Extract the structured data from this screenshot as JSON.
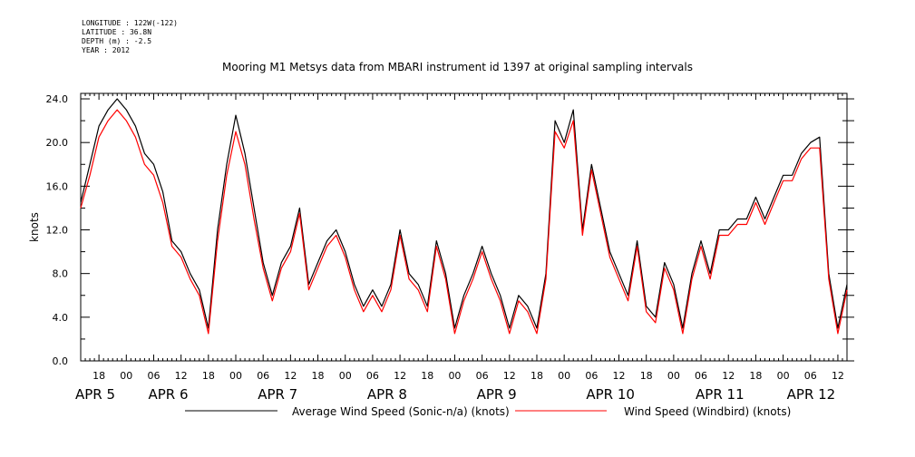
{
  "meta": {
    "longitude": "LONGITUDE : 122W(-122)",
    "latitude": "LATITUDE : 36.8N",
    "depth": "DEPTH (m) : -2.5",
    "year": "YEAR : 2012"
  },
  "chart_data": {
    "type": "line",
    "title": "Mooring M1 Metsys data from MBARI instrument id 1397 at original sampling intervals",
    "ylabel": "knots",
    "xlabel": "",
    "ylim": [
      0,
      24.5
    ],
    "xlim_hours": [
      14,
      182
    ],
    "yticks": [
      "0.0",
      "4.0",
      "8.0",
      "12.0",
      "16.0",
      "20.0",
      "24.0"
    ],
    "ytick_values": [
      0,
      4,
      8,
      12,
      16,
      20,
      24
    ],
    "hour_ticks": [
      {
        "h": 18,
        "label": "18"
      },
      {
        "h": 24,
        "label": "00"
      },
      {
        "h": 30,
        "label": "06"
      },
      {
        "h": 36,
        "label": "12"
      },
      {
        "h": 42,
        "label": "18"
      },
      {
        "h": 48,
        "label": "00"
      },
      {
        "h": 54,
        "label": "06"
      },
      {
        "h": 60,
        "label": "12"
      },
      {
        "h": 66,
        "label": "18"
      },
      {
        "h": 72,
        "label": "00"
      },
      {
        "h": 78,
        "label": "06"
      },
      {
        "h": 84,
        "label": "12"
      },
      {
        "h": 90,
        "label": "18"
      },
      {
        "h": 96,
        "label": "00"
      },
      {
        "h": 102,
        "label": "06"
      },
      {
        "h": 108,
        "label": "12"
      },
      {
        "h": 114,
        "label": "18"
      },
      {
        "h": 120,
        "label": "00"
      },
      {
        "h": 126,
        "label": "06"
      },
      {
        "h": 132,
        "label": "12"
      },
      {
        "h": 138,
        "label": "18"
      },
      {
        "h": 144,
        "label": "00"
      },
      {
        "h": 150,
        "label": "06"
      },
      {
        "h": 156,
        "label": "12"
      },
      {
        "h": 162,
        "label": "18"
      },
      {
        "h": 168,
        "label": "00"
      },
      {
        "h": 174,
        "label": "06"
      },
      {
        "h": 180,
        "label": "12"
      }
    ],
    "date_labels": [
      {
        "h": 14,
        "label": "APR  5"
      },
      {
        "h": 30,
        "label": "APR  6"
      },
      {
        "h": 54,
        "label": "APR  7"
      },
      {
        "h": 78,
        "label": "APR  8"
      },
      {
        "h": 102,
        "label": "APR  9"
      },
      {
        "h": 126,
        "label": "APR 10"
      },
      {
        "h": 150,
        "label": "APR 11"
      },
      {
        "h": 170,
        "label": "APR 12"
      }
    ],
    "series": [
      {
        "name": "Average Wind Speed (Sonic-n/a) (knots)",
        "color": "#000000",
        "x": [
          14,
          16,
          18,
          20,
          22,
          24,
          26,
          28,
          30,
          32,
          34,
          36,
          38,
          40,
          42,
          44,
          46,
          48,
          50,
          52,
          54,
          56,
          58,
          60,
          62,
          64,
          66,
          68,
          70,
          72,
          74,
          76,
          78,
          80,
          82,
          84,
          86,
          88,
          90,
          92,
          94,
          96,
          98,
          100,
          102,
          104,
          106,
          108,
          110,
          112,
          114,
          116,
          118,
          120,
          122,
          124,
          126,
          128,
          130,
          132,
          134,
          136,
          138,
          140,
          142,
          144,
          146,
          148,
          150,
          152,
          154,
          156,
          158,
          160,
          162,
          164,
          166,
          168,
          170,
          172,
          174,
          176,
          178,
          180,
          181,
          182
        ],
        "values": [
          14.5,
          18,
          21.5,
          23,
          24,
          23,
          21.5,
          19,
          18,
          15.5,
          11,
          10,
          8,
          6.5,
          3,
          12,
          18,
          22.5,
          19,
          14,
          9,
          6,
          9,
          10.5,
          14,
          7,
          9,
          11,
          12,
          10,
          7,
          5,
          6.5,
          5,
          7,
          12,
          8,
          7,
          5,
          11,
          8,
          3,
          6,
          8,
          10.5,
          8,
          6,
          3,
          6,
          5,
          3,
          8,
          22,
          20,
          23,
          12,
          18,
          14,
          10,
          8,
          6,
          11,
          5,
          4,
          9,
          7,
          3,
          8,
          11,
          8,
          12,
          12,
          13,
          13,
          15,
          13,
          15,
          17,
          17,
          19,
          20,
          20.5,
          8,
          3,
          5,
          7
        ]
      },
      {
        "name": "Wind Speed (Windbird) (knots)",
        "color": "#ff0000",
        "x": [
          14,
          16,
          18,
          20,
          22,
          24,
          26,
          28,
          30,
          32,
          34,
          36,
          38,
          40,
          42,
          44,
          46,
          48,
          50,
          52,
          54,
          56,
          58,
          60,
          62,
          64,
          66,
          68,
          70,
          72,
          74,
          76,
          78,
          80,
          82,
          84,
          86,
          88,
          90,
          92,
          94,
          96,
          98,
          100,
          102,
          104,
          106,
          108,
          110,
          112,
          114,
          116,
          118,
          120,
          122,
          124,
          126,
          128,
          130,
          132,
          134,
          136,
          138,
          140,
          142,
          144,
          146,
          148,
          150,
          152,
          154,
          156,
          158,
          160,
          162,
          164,
          166,
          168,
          170,
          172,
          174,
          176,
          178,
          180,
          181,
          182
        ],
        "values": [
          14,
          17,
          20.5,
          22,
          23,
          22,
          20.5,
          18,
          17,
          14.5,
          10.5,
          9.5,
          7.5,
          6,
          2.5,
          11,
          17,
          21,
          18,
          13,
          8.5,
          5.5,
          8.5,
          10,
          13.5,
          6.5,
          8.5,
          10.5,
          11.5,
          9.5,
          6.5,
          4.5,
          6,
          4.5,
          6.5,
          11.5,
          7.5,
          6.5,
          4.5,
          10.5,
          7.5,
          2.5,
          5.5,
          7.5,
          10,
          7.5,
          5.5,
          2.5,
          5.5,
          4.5,
          2.5,
          7.5,
          21,
          19.5,
          22,
          11.5,
          17.5,
          13.5,
          9.5,
          7.5,
          5.5,
          10.5,
          4.5,
          3.5,
          8.5,
          6.5,
          2.5,
          7.5,
          10.5,
          7.5,
          11.5,
          11.5,
          12.5,
          12.5,
          14.5,
          12.5,
          14.5,
          16.5,
          16.5,
          18.5,
          19.5,
          19.5,
          7.5,
          2.5,
          4.5,
          6.5
        ]
      }
    ],
    "legend": [
      {
        "label": "Average Wind Speed (Sonic-n/a) (knots)",
        "color": "#000000"
      },
      {
        "label": "Wind Speed (Windbird) (knots)",
        "color": "#ff0000"
      }
    ],
    "grid": false,
    "legend_position": "bottom"
  }
}
